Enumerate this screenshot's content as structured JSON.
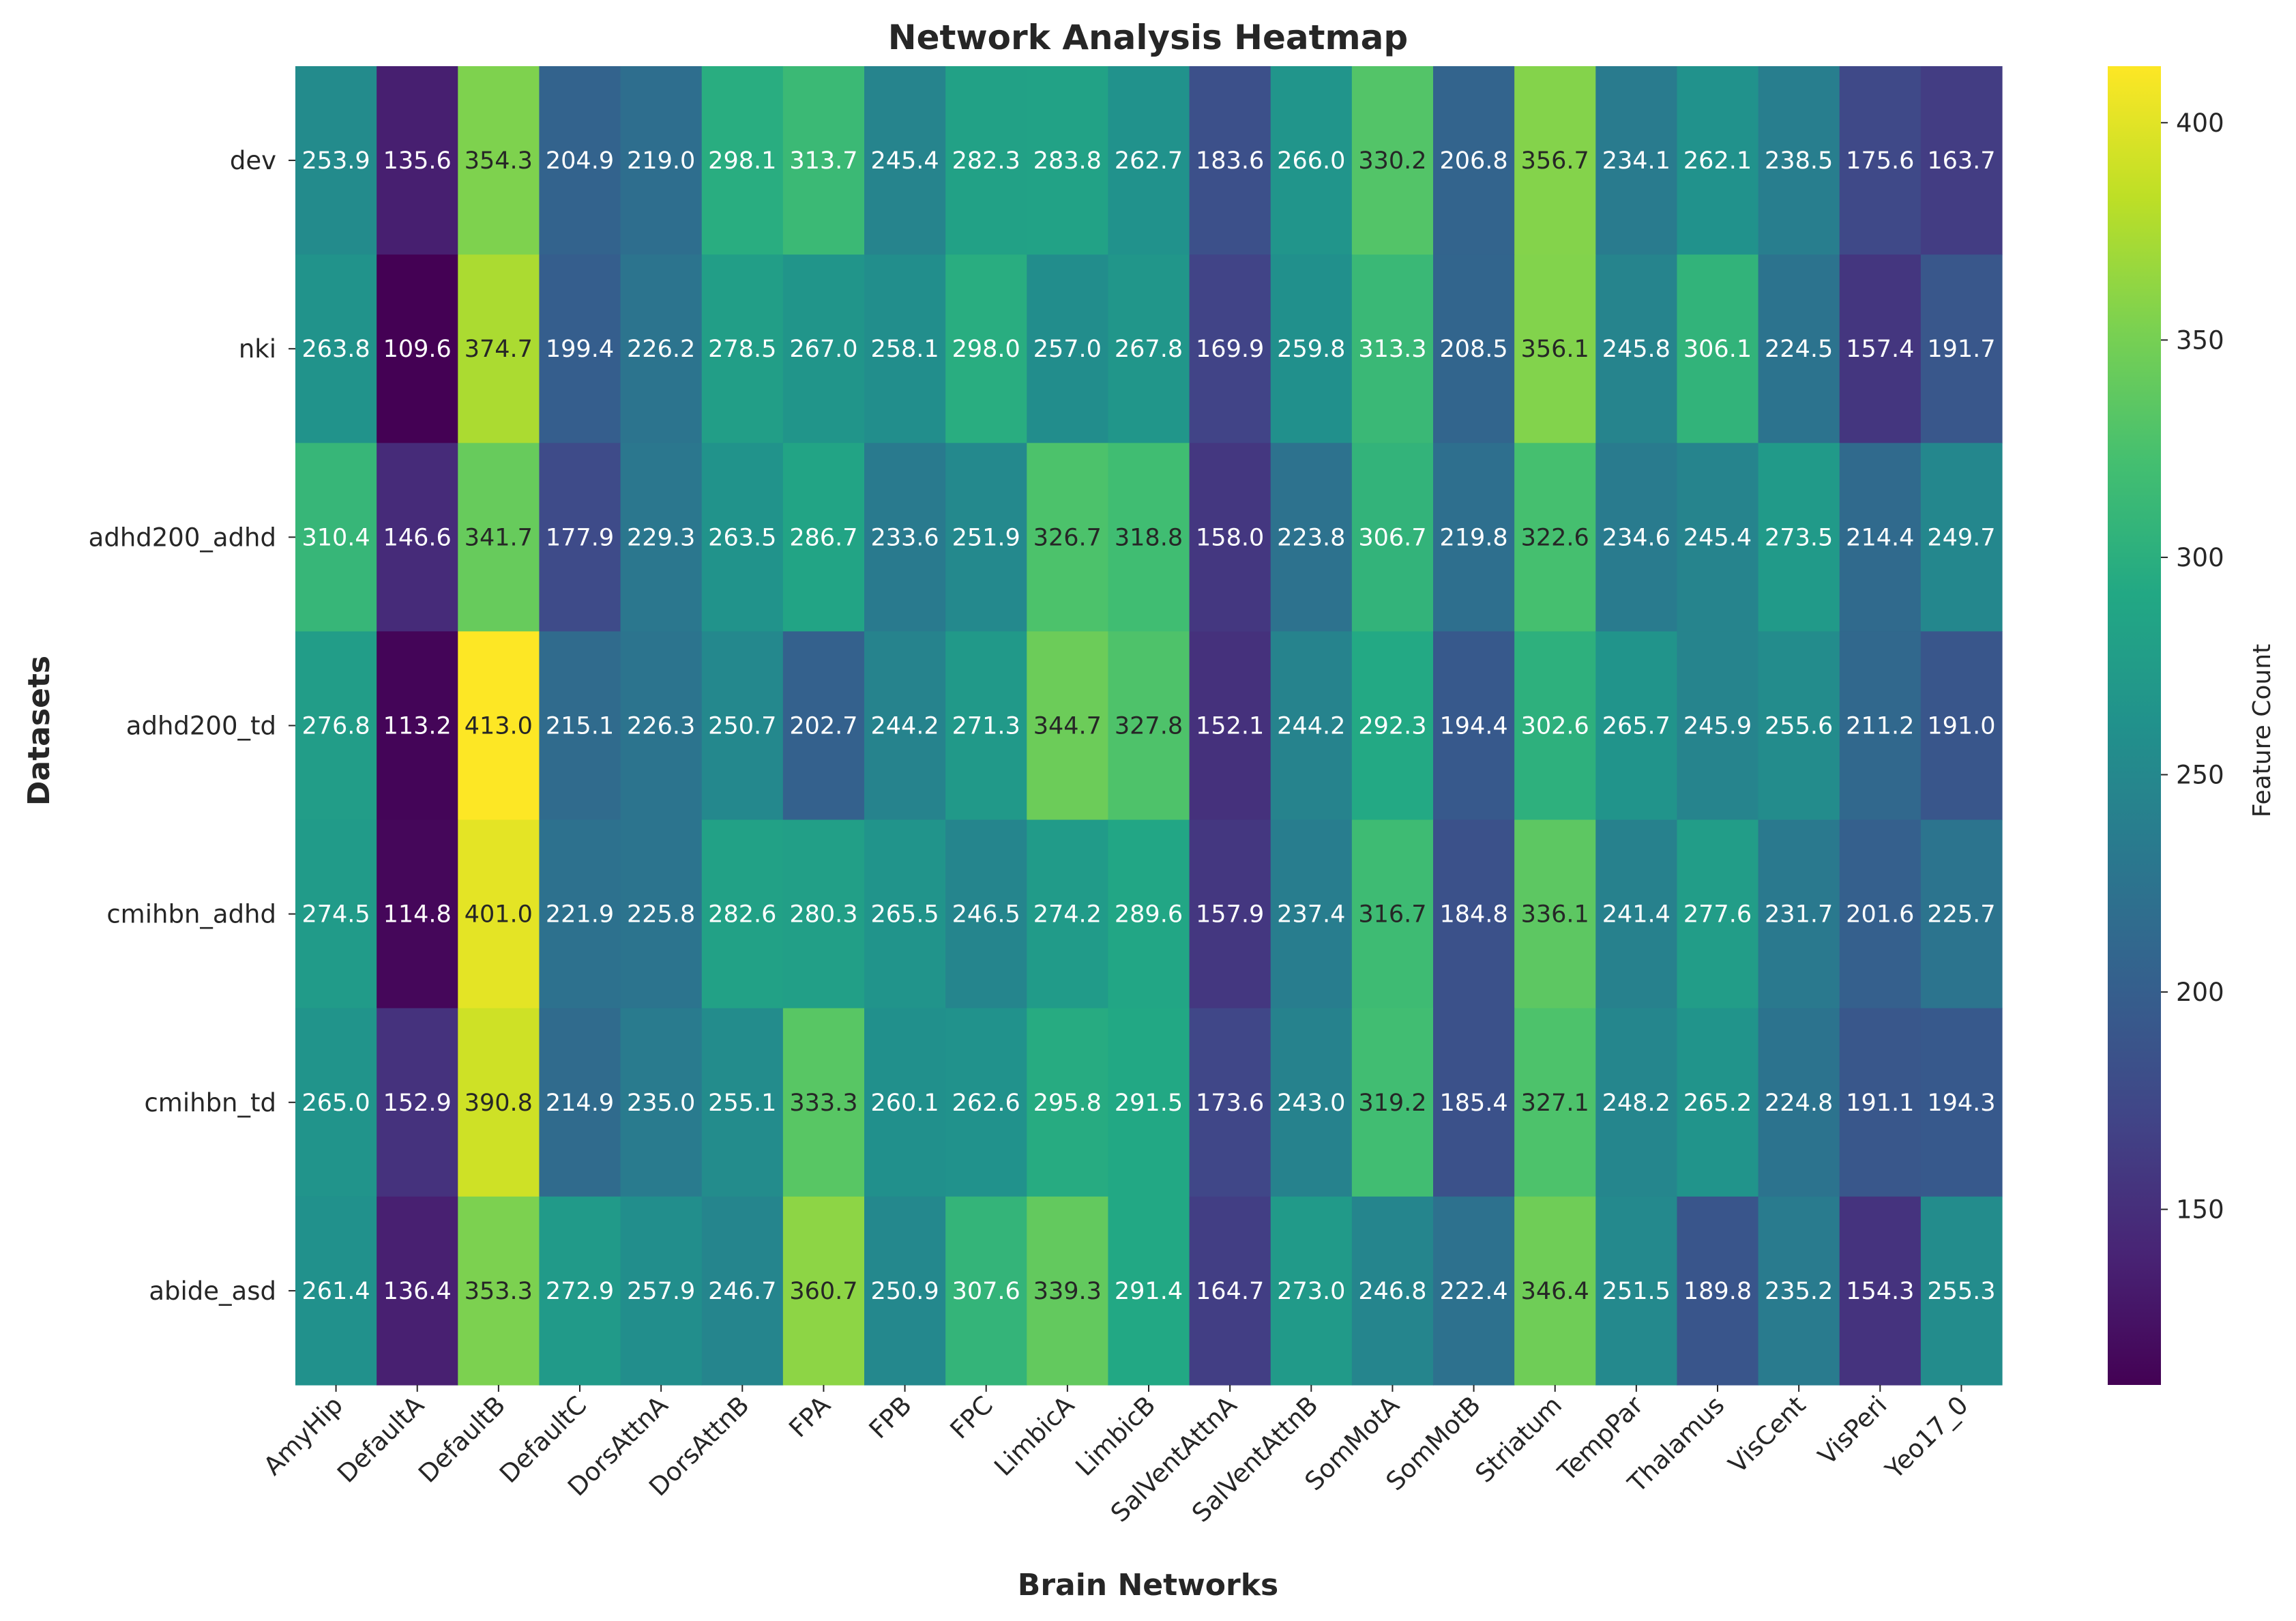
{
  "chart_data": {
    "type": "heatmap",
    "title": "Network Analysis Heatmap",
    "xlabel": "Brain Networks",
    "ylabel": "Datasets",
    "colorbar_label": "Feature Count",
    "colormap": "viridis",
    "color_range": [
      109.6,
      413.0
    ],
    "colorbar_ticks": [
      150,
      200,
      250,
      300,
      350,
      400
    ],
    "x_categories": [
      "AmyHip",
      "DefaultA",
      "DefaultB",
      "DefaultC",
      "DorsAttnA",
      "DorsAttnB",
      "FPA",
      "FPB",
      "FPC",
      "LimbicA",
      "LimbicB",
      "SalVentAttnA",
      "SalVentAttnB",
      "SomMotA",
      "SomMotB",
      "Striatum",
      "TempPar",
      "Thalamus",
      "VisCent",
      "VisPeri",
      "Yeo17_0"
    ],
    "y_categories": [
      "dev",
      "nki",
      "adhd200_adhd",
      "adhd200_td",
      "cmihbn_adhd",
      "cmihbn_td",
      "abide_asd"
    ],
    "values": [
      [
        253.9,
        135.6,
        354.3,
        204.9,
        219.0,
        298.1,
        313.7,
        245.4,
        282.3,
        283.8,
        262.7,
        183.6,
        266.0,
        330.2,
        206.8,
        356.7,
        234.1,
        262.1,
        238.5,
        175.6,
        163.7
      ],
      [
        263.8,
        109.6,
        374.7,
        199.4,
        226.2,
        278.5,
        267.0,
        258.1,
        298.0,
        257.0,
        267.8,
        169.9,
        259.8,
        313.3,
        208.5,
        356.1,
        245.8,
        306.1,
        224.5,
        157.4,
        191.7
      ],
      [
        310.4,
        146.6,
        341.7,
        177.9,
        229.3,
        263.5,
        286.7,
        233.6,
        251.9,
        326.7,
        318.8,
        158.0,
        223.8,
        306.7,
        219.8,
        322.6,
        234.6,
        245.4,
        273.5,
        214.4,
        249.7
      ],
      [
        276.8,
        113.2,
        413.0,
        215.1,
        226.3,
        250.7,
        202.7,
        244.2,
        271.3,
        344.7,
        327.8,
        152.1,
        244.2,
        292.3,
        194.4,
        302.6,
        265.7,
        245.9,
        255.6,
        211.2,
        191.0
      ],
      [
        274.5,
        114.8,
        401.0,
        221.9,
        225.8,
        282.6,
        280.3,
        265.5,
        246.5,
        274.2,
        289.6,
        157.9,
        237.4,
        316.7,
        184.8,
        336.1,
        241.4,
        277.6,
        231.7,
        201.6,
        225.7
      ],
      [
        265.0,
        152.9,
        390.8,
        214.9,
        235.0,
        255.1,
        333.3,
        260.1,
        262.6,
        295.8,
        291.5,
        173.6,
        243.0,
        319.2,
        185.4,
        327.1,
        248.2,
        265.2,
        224.8,
        191.1,
        194.3
      ],
      [
        261.4,
        136.4,
        353.3,
        272.9,
        257.9,
        246.7,
        360.7,
        250.9,
        307.6,
        339.3,
        291.4,
        164.7,
        273.0,
        246.8,
        222.4,
        346.4,
        251.5,
        189.8,
        235.2,
        154.3,
        255.3
      ]
    ]
  }
}
